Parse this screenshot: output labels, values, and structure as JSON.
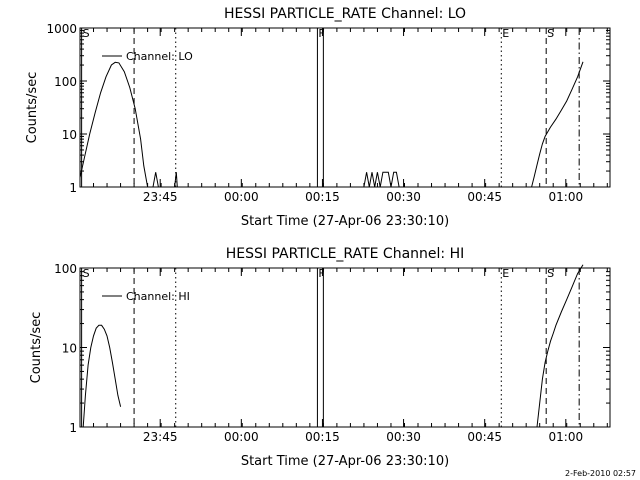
{
  "footer_text": "2-Feb-2010 02:57",
  "chart_data": [
    {
      "type": "line",
      "title": "HESSI PARTICLE_RATE Channel: LO",
      "xlabel": "Start Time (27-Apr-06 23:30:10)",
      "ylabel": "Counts/sec",
      "y_scale": "log",
      "ylim": [
        1,
        1000
      ],
      "y_ticks": [
        1,
        10,
        100,
        1000
      ],
      "y_tick_labels": [
        "1",
        "10",
        "100",
        "1000"
      ],
      "x_unit": "minutes since 23:30:10",
      "xlim": [
        0,
        98
      ],
      "x_ticks": [
        14.83,
        29.83,
        44.83,
        59.83,
        74.83,
        89.83
      ],
      "x_tick_labels": [
        "23:45",
        "00:00",
        "00:15",
        "00:30",
        "00:45",
        "01:00"
      ],
      "legend": "Channel: LO",
      "event_lines": [
        {
          "x": 0.3,
          "style": "solid",
          "label": "S"
        },
        {
          "x": 10.0,
          "style": "dashed",
          "label": ""
        },
        {
          "x": 17.7,
          "style": "dotted",
          "label": ""
        },
        {
          "x": 43.9,
          "style": "solid",
          "label": "F"
        },
        {
          "x": 45.0,
          "style": "solid",
          "label": ""
        },
        {
          "x": 77.9,
          "style": "dotted",
          "label": "E"
        },
        {
          "x": 86.2,
          "style": "dashed",
          "label": "S"
        },
        {
          "x": 92.3,
          "style": "dashdot",
          "label": ""
        }
      ],
      "series": [
        {
          "x": [
            0,
            0.8,
            1.8,
            2.8,
            3.8,
            4.8,
            5.8,
            6.5,
            7.2,
            8.2,
            9.2,
            10.2,
            11.2,
            11.8,
            12.5,
            13.0,
            13.5,
            14.0,
            14.5,
            15.0,
            15.5,
            16.0,
            16.5,
            17.0,
            17.5,
            17.8,
            18.0
          ],
          "y": [
            1.5,
            3.5,
            10,
            25,
            60,
            120,
            200,
            225,
            220,
            150,
            75,
            30,
            8,
            2.5,
            1,
            1,
            1,
            1.9,
            1,
            1,
            1,
            1,
            1,
            1,
            1,
            1.9,
            1
          ]
        },
        {
          "x": [
            52.5,
            53.0,
            53.5,
            54.0,
            54.5,
            55.0,
            55.5,
            56.0,
            56.5,
            57.0,
            57.5,
            58.0,
            58.5,
            59.0
          ],
          "y": [
            1,
            1.9,
            1,
            1.9,
            1,
            1.9,
            1,
            1.9,
            1.9,
            1.9,
            1,
            1.9,
            1.9,
            1
          ]
        },
        {
          "x": [
            83.5,
            84.0,
            84.5,
            85.0,
            85.5,
            86.0,
            86.5,
            87.0,
            88.0,
            89.0,
            90.0,
            91.0,
            92.0,
            93.0
          ],
          "y": [
            1,
            1.6,
            2.6,
            4.2,
            6.5,
            9.0,
            11,
            13.5,
            19,
            28,
            42,
            70,
            120,
            230
          ]
        }
      ]
    },
    {
      "type": "line",
      "title": "HESSI PARTICLE_RATE Channel: HI",
      "xlabel": "Start Time (27-Apr-06 23:30:10)",
      "ylabel": "Counts/sec",
      "y_scale": "log",
      "ylim": [
        1,
        100
      ],
      "y_ticks": [
        1,
        10,
        100
      ],
      "y_tick_labels": [
        "1",
        "10",
        "100"
      ],
      "x_unit": "minutes since 23:30:10",
      "xlim": [
        0,
        98
      ],
      "x_ticks": [
        14.83,
        29.83,
        44.83,
        59.83,
        74.83,
        89.83
      ],
      "x_tick_labels": [
        "23:45",
        "00:00",
        "00:15",
        "00:30",
        "00:45",
        "01:00"
      ],
      "legend": "Channel: HI",
      "event_lines": [
        {
          "x": 0.3,
          "style": "solid",
          "label": "S"
        },
        {
          "x": 10.0,
          "style": "dashed",
          "label": ""
        },
        {
          "x": 17.7,
          "style": "dotted",
          "label": ""
        },
        {
          "x": 43.9,
          "style": "solid",
          "label": "F"
        },
        {
          "x": 45.0,
          "style": "solid",
          "label": ""
        },
        {
          "x": 77.9,
          "style": "dotted",
          "label": "E"
        },
        {
          "x": 86.2,
          "style": "dashed",
          "label": "S"
        },
        {
          "x": 92.3,
          "style": "dashdot",
          "label": ""
        }
      ],
      "series": [
        {
          "x": [
            0.6,
            1.0,
            1.5,
            2.0,
            2.5,
            3.0,
            3.5,
            4.0,
            4.5,
            5.0,
            5.5,
            6.0,
            6.5,
            7.0,
            7.5
          ],
          "y": [
            1,
            2.5,
            6,
            10,
            14,
            17.5,
            19,
            19,
            17,
            14,
            10,
            6.5,
            4,
            2.5,
            1.8
          ]
        },
        {
          "x": [
            84.5,
            85.0,
            85.5,
            86.0,
            86.5,
            87.0,
            87.5,
            88.0,
            89.0,
            90.0,
            91.0,
            92.0,
            93.0
          ],
          "y": [
            1,
            2,
            4,
            6.5,
            9,
            12,
            15,
            19,
            28,
            40,
            58,
            85,
            110
          ]
        }
      ]
    }
  ]
}
